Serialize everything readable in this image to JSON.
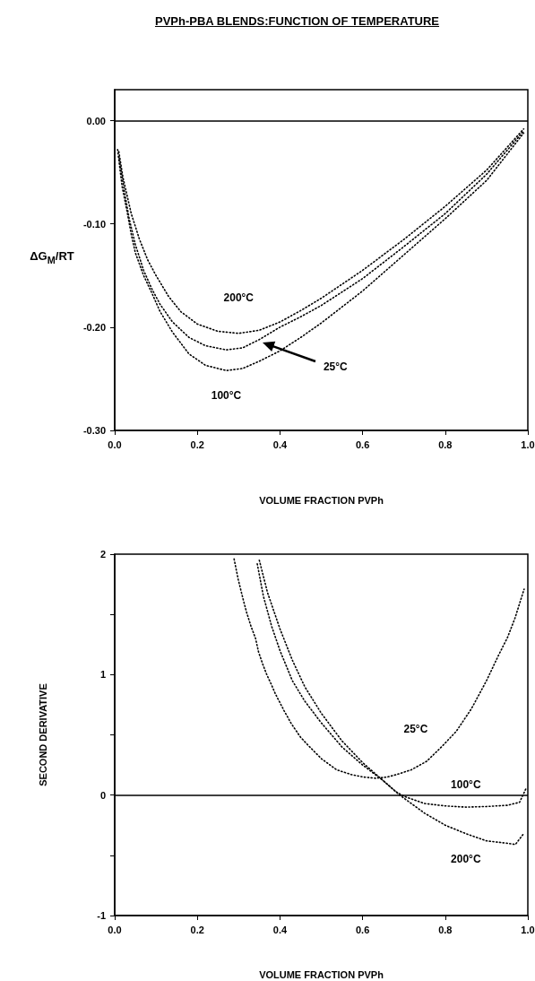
{
  "chart_data": [
    {
      "type": "line",
      "title": "PVPh-PBA BLENDS:FUNCTION OF TEMPERATURE",
      "xlabel": "VOLUME FRACTION PVPh",
      "ylabel": "ΔG$_{M}$/RT",
      "xlim": [
        0,
        1
      ],
      "ylim": [
        -0.3,
        0.03
      ],
      "xticks": [
        {
          "value": 0,
          "label": "0.0"
        },
        {
          "value": 0.2,
          "label": "0.2"
        },
        {
          "value": 0.4,
          "label": "0.4"
        },
        {
          "value": 0.6,
          "label": "0.6"
        },
        {
          "value": 0.8,
          "label": "0.8"
        },
        {
          "value": 1,
          "label": "1.0"
        }
      ],
      "yticks": [
        {
          "value": -0.3,
          "label": "-0.30"
        },
        {
          "value": -0.2,
          "label": "-0.20"
        },
        {
          "value": -0.1,
          "label": "-0.10"
        },
        {
          "value": 0,
          "label": "0.00"
        }
      ],
      "grid": false,
      "marker": "none",
      "line_style": "dotted",
      "ref_lines": [
        {
          "axis": "y",
          "value": 0,
          "color": "#000000",
          "line_style": "solid"
        }
      ],
      "series": [
        {
          "name": "200°C",
          "color": "#000000",
          "x": [
            0.01,
            0.02,
            0.04,
            0.06,
            0.08,
            0.1,
            0.13,
            0.16,
            0.2,
            0.25,
            0.3,
            0.35,
            0.4,
            0.45,
            0.5,
            0.6,
            0.7,
            0.8,
            0.9,
            0.99
          ],
          "values": [
            -0.03,
            -0.055,
            -0.09,
            -0.115,
            -0.135,
            -0.15,
            -0.17,
            -0.185,
            -0.197,
            -0.204,
            -0.206,
            -0.203,
            -0.195,
            -0.184,
            -0.172,
            -0.145,
            -0.115,
            -0.083,
            -0.048,
            -0.008
          ]
        },
        {
          "name": "25°C",
          "color": "#000000",
          "x": [
            0.01,
            0.02,
            0.035,
            0.05,
            0.07,
            0.09,
            0.11,
            0.14,
            0.18,
            0.22,
            0.27,
            0.31,
            0.35,
            0.4,
            0.45,
            0.5,
            0.6,
            0.7,
            0.8,
            0.9,
            0.99
          ],
          "values": [
            -0.035,
            -0.06,
            -0.095,
            -0.12,
            -0.145,
            -0.163,
            -0.178,
            -0.195,
            -0.21,
            -0.218,
            -0.222,
            -0.22,
            -0.212,
            -0.2,
            -0.19,
            -0.179,
            -0.153,
            -0.122,
            -0.09,
            -0.052,
            -0.01
          ]
        },
        {
          "name": "100°C",
          "color": "#000000",
          "x": [
            0.007,
            0.018,
            0.03,
            0.04,
            0.05,
            0.07,
            0.09,
            0.11,
            0.14,
            0.18,
            0.22,
            0.27,
            0.31,
            0.35,
            0.4,
            0.45,
            0.5,
            0.6,
            0.7,
            0.8,
            0.9,
            0.99
          ],
          "values": [
            -0.028,
            -0.064,
            -0.088,
            -0.11,
            -0.128,
            -0.15,
            -0.167,
            -0.185,
            -0.205,
            -0.226,
            -0.237,
            -0.242,
            -0.24,
            -0.233,
            -0.223,
            -0.21,
            -0.196,
            -0.165,
            -0.13,
            -0.095,
            -0.058,
            -0.012
          ]
        }
      ]
    },
    {
      "type": "line",
      "xlabel": "VOLUME FRACTION PVPh",
      "ylabel": "SECOND DERIVATIVE",
      "xlim": [
        0,
        1
      ],
      "ylim": [
        -1,
        2
      ],
      "xticks": [
        {
          "value": 0,
          "label": "0.0"
        },
        {
          "value": 0.2,
          "label": "0.2"
        },
        {
          "value": 0.4,
          "label": "0.4"
        },
        {
          "value": 0.6,
          "label": "0.6"
        },
        {
          "value": 0.8,
          "label": "0.8"
        },
        {
          "value": 1,
          "label": "1.0"
        }
      ],
      "yticks": [
        -1,
        {
          "value": -0.5,
          "label": null
        },
        0,
        {
          "value": 0.5,
          "label": null
        },
        1,
        {
          "value": 1.5,
          "label": null
        },
        2
      ],
      "grid": false,
      "marker": "none",
      "line_style": "dotted",
      "ref_lines": [
        {
          "axis": "y",
          "value": 0,
          "color": "#000000",
          "line_style": "solid"
        }
      ],
      "series": [
        {
          "name": "25°C",
          "color": "#000000",
          "x": [
            0.289,
            0.299,
            0.309,
            0.319,
            0.33,
            0.341,
            0.348,
            0.358,
            0.368,
            0.379,
            0.389,
            0.41,
            0.428,
            0.45,
            0.472,
            0.501,
            0.537,
            0.573,
            0.602,
            0.631,
            0.66,
            0.682,
            0.718,
            0.755,
            0.791,
            0.827,
            0.864,
            0.9,
            0.929,
            0.951,
            0.969,
            0.991
          ],
          "values": [
            1.96,
            1.79,
            1.65,
            1.52,
            1.4,
            1.3,
            1.19,
            1.09,
            1.0,
            0.92,
            0.84,
            0.7,
            0.59,
            0.48,
            0.4,
            0.3,
            0.21,
            0.17,
            0.15,
            0.14,
            0.15,
            0.17,
            0.21,
            0.28,
            0.4,
            0.53,
            0.72,
            0.95,
            1.16,
            1.31,
            1.47,
            1.71
          ]
        },
        {
          "name": "100°C",
          "color": "#000000",
          "x": [
            0.345,
            0.36,
            0.38,
            0.4,
            0.43,
            0.46,
            0.5,
            0.55,
            0.6,
            0.65,
            0.68,
            0.7,
            0.75,
            0.8,
            0.85,
            0.9,
            0.95,
            0.98,
            0.995
          ],
          "values": [
            1.92,
            1.65,
            1.4,
            1.2,
            0.95,
            0.78,
            0.6,
            0.4,
            0.25,
            0.12,
            0.03,
            -0.01,
            -0.07,
            -0.09,
            -0.1,
            -0.095,
            -0.085,
            -0.06,
            0.05
          ]
        },
        {
          "name": "200°C",
          "color": "#000000",
          "x": [
            0.35,
            0.37,
            0.4,
            0.43,
            0.46,
            0.5,
            0.55,
            0.6,
            0.65,
            0.69,
            0.75,
            0.8,
            0.85,
            0.9,
            0.95,
            0.97,
            0.99
          ],
          "values": [
            1.95,
            1.68,
            1.38,
            1.12,
            0.9,
            0.68,
            0.45,
            0.27,
            0.12,
            0,
            -0.15,
            -0.25,
            -0.32,
            -0.38,
            -0.4,
            -0.41,
            -0.32
          ]
        }
      ]
    }
  ]
}
